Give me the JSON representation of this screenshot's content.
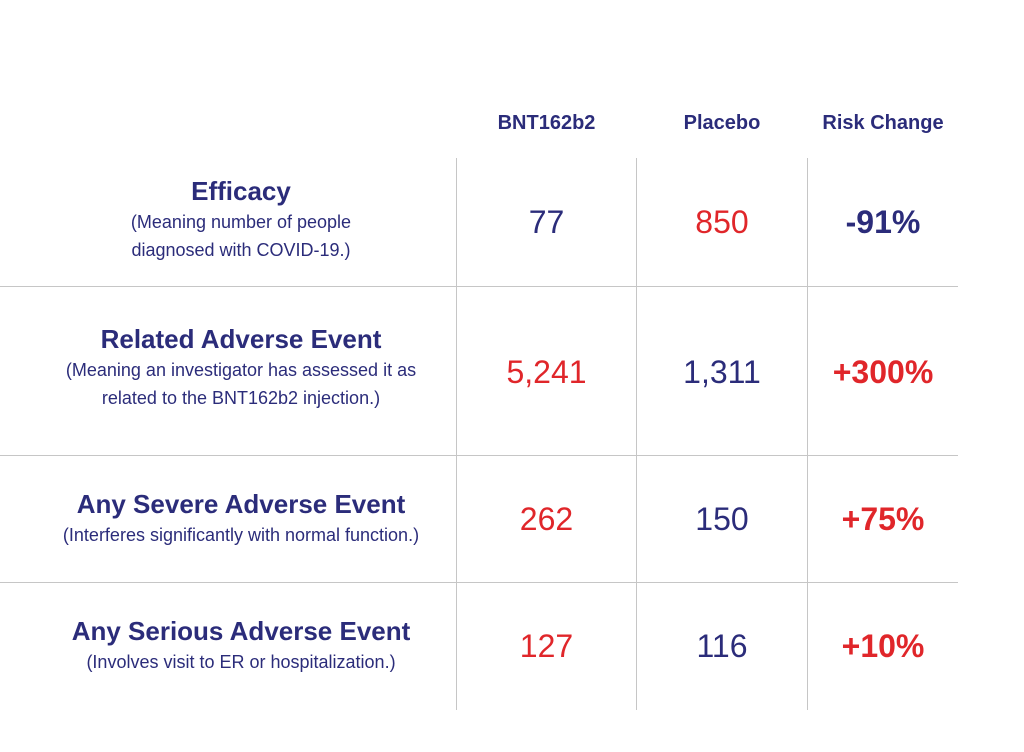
{
  "chart_data": {
    "type": "table",
    "columns": [
      "BNT162b2",
      "Placebo",
      "Risk Change"
    ],
    "rows": [
      {
        "title": "Efficacy",
        "subtitle": [
          "(Meaning number of people",
          "diagnosed with COVID-19.)"
        ],
        "values": [
          "77",
          "850",
          "-91%"
        ],
        "colors": [
          "navy",
          "red",
          "navy"
        ]
      },
      {
        "title": "Related Adverse Event",
        "subtitle": [
          "(Meaning an investigator has assessed it as",
          "related to the BNT162b2 injection.)"
        ],
        "values": [
          "5,241",
          "1,311",
          "+300%"
        ],
        "colors": [
          "red",
          "navy",
          "red"
        ]
      },
      {
        "title": "Any Severe Adverse Event",
        "subtitle": [
          "(Interferes significantly with normal function.)"
        ],
        "values": [
          "262",
          "150",
          "+75%"
        ],
        "colors": [
          "red",
          "navy",
          "red"
        ]
      },
      {
        "title": "Any Serious Adverse Event",
        "subtitle": [
          "(Involves visit to ER or hospitalization.)"
        ],
        "values": [
          "127",
          "116",
          "+10%"
        ],
        "colors": [
          "red",
          "navy",
          "red"
        ]
      }
    ]
  },
  "colors": {
    "navy": "#2b2c7a",
    "red": "#e0262a",
    "grid": "#c6c6c6"
  }
}
